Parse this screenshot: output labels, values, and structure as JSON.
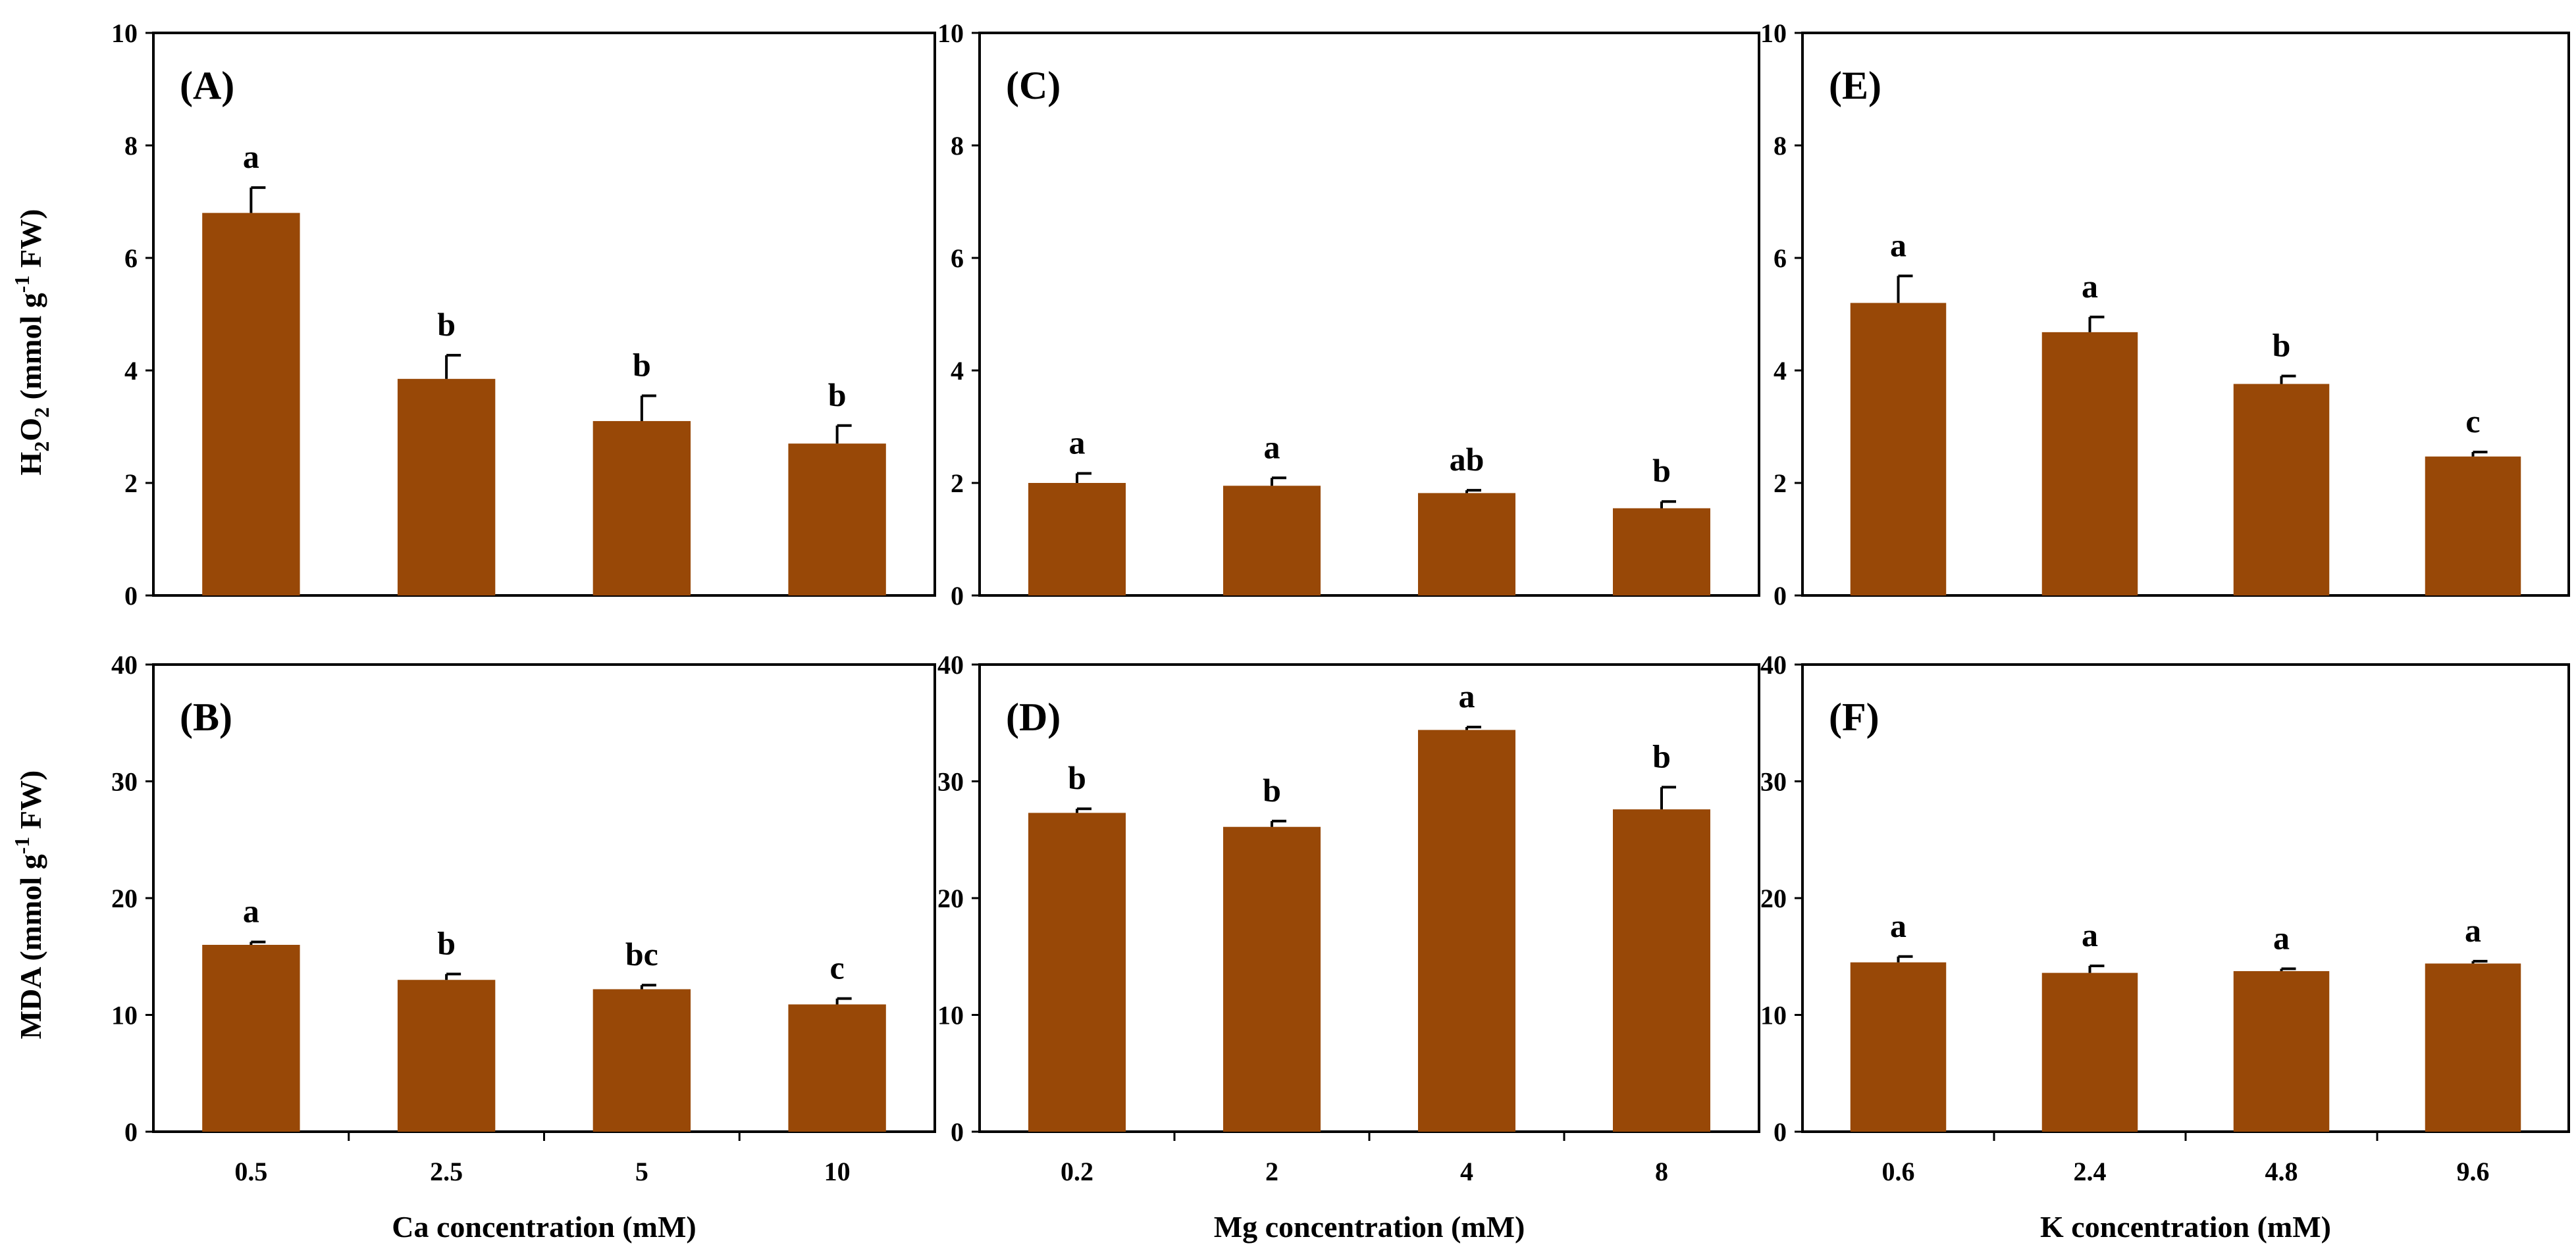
{
  "colors": {
    "bar": "#984807",
    "axis": "#000000"
  },
  "y_axis_titles": {
    "top_main": "H",
    "top_sub": "2",
    "top_main2": "O",
    "top_sub2": "2",
    "top_rest": " (mmol g",
    "top_sup": "-1",
    "top_end": " FW)",
    "bottom_main": "MDA (mmol g",
    "bottom_sup": "-1",
    "bottom_end": " FW)"
  },
  "chart_data": [
    {
      "type": "bar",
      "panel": "(A)",
      "categories": [
        "0.5",
        "2.5",
        "5",
        "10"
      ],
      "values": [
        6.8,
        3.85,
        3.1,
        2.7
      ],
      "errors": [
        0.45,
        0.42,
        0.45,
        0.32
      ],
      "letters": [
        "a",
        "b",
        "b",
        "b"
      ],
      "ylim": [
        0,
        10
      ],
      "yticks": [
        0,
        2,
        4,
        6,
        8,
        10
      ],
      "ylabel": "H2O2 (mmol g-1 FW)",
      "xlabel": ""
    },
    {
      "type": "bar",
      "panel": "(B)",
      "categories": [
        "0.5",
        "2.5",
        "5",
        "10"
      ],
      "values": [
        16,
        13,
        12.2,
        10.9
      ],
      "errors": [
        0.25,
        0.5,
        0.35,
        0.5
      ],
      "letters": [
        "a",
        "b",
        "bc",
        "c"
      ],
      "ylim": [
        0,
        40
      ],
      "yticks": [
        0,
        10,
        20,
        30,
        40
      ],
      "ylabel": "MDA (mmol g-1 FW)",
      "xlabel": "Ca concentration (mM)"
    },
    {
      "type": "bar",
      "panel": "(C)",
      "categories": [
        "0.2",
        "2",
        "4",
        "8"
      ],
      "values": [
        2.0,
        1.95,
        1.82,
        1.55
      ],
      "errors": [
        0.17,
        0.14,
        0.05,
        0.12
      ],
      "letters": [
        "a",
        "a",
        "ab",
        "b"
      ],
      "ylim": [
        0,
        10
      ],
      "yticks": [
        0,
        2,
        4,
        6,
        8,
        10
      ],
      "ylabel": "",
      "xlabel": ""
    },
    {
      "type": "bar",
      "panel": "(D)",
      "categories": [
        "0.2",
        "2",
        "4",
        "8"
      ],
      "values": [
        27.3,
        26.1,
        34.4,
        27.6
      ],
      "errors": [
        0.35,
        0.5,
        0.25,
        1.9
      ],
      "letters": [
        "b",
        "b",
        "a",
        "b"
      ],
      "ylim": [
        0,
        40
      ],
      "yticks": [
        0,
        10,
        20,
        30,
        40
      ],
      "ylabel": "",
      "xlabel": "Mg concentration (mM)"
    },
    {
      "type": "bar",
      "panel": "(E)",
      "categories": [
        "0.6",
        "2.4",
        "4.8",
        "9.6"
      ],
      "values": [
        5.2,
        4.68,
        3.76,
        2.47
      ],
      "errors": [
        0.48,
        0.27,
        0.14,
        0.08
      ],
      "letters": [
        "a",
        "a",
        "b",
        "c"
      ],
      "ylim": [
        0,
        10
      ],
      "yticks": [
        0,
        2,
        4,
        6,
        8,
        10
      ],
      "ylabel": "",
      "xlabel": ""
    },
    {
      "type": "bar",
      "panel": "(F)",
      "categories": [
        "0.6",
        "2.4",
        "4.8",
        "9.6"
      ],
      "values": [
        14.5,
        13.6,
        13.75,
        14.4
      ],
      "errors": [
        0.5,
        0.6,
        0.2,
        0.2
      ],
      "letters": [
        "a",
        "a",
        "a",
        "a"
      ],
      "ylim": [
        0,
        40
      ],
      "yticks": [
        0,
        10,
        20,
        30,
        40
      ],
      "ylabel": "",
      "xlabel": "K concentration (mM)"
    }
  ]
}
